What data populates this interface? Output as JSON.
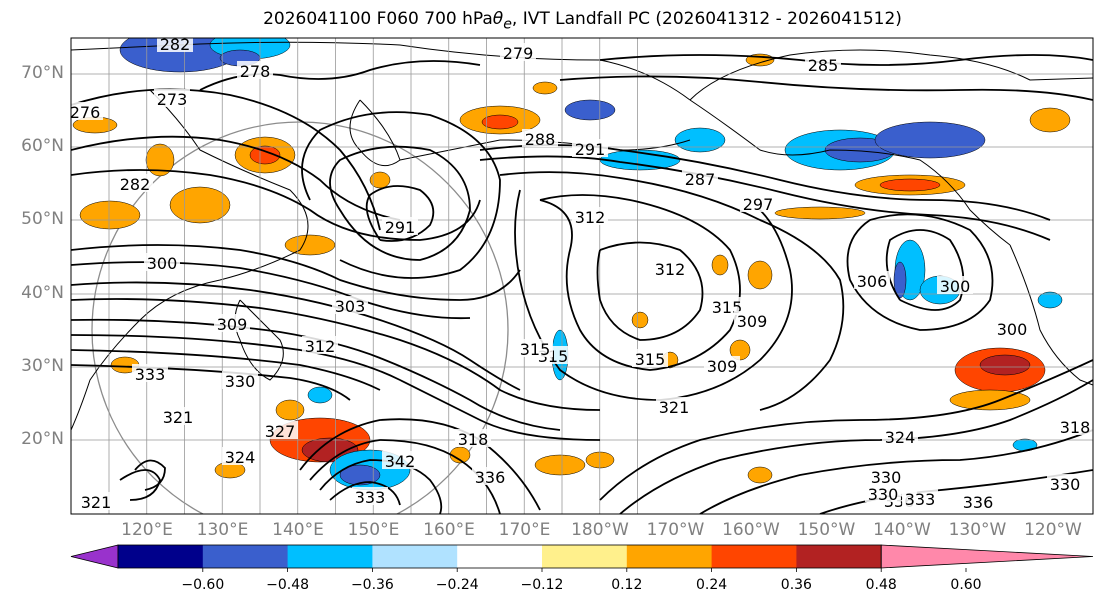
{
  "title": {
    "prefix": "2026041100 F060 700 hPa ",
    "theta": "θ",
    "theta_sub": "e",
    "suffix": ", IVT Landfall PC (2026041312 - 2026041512)"
  },
  "map": {
    "lat_labels": [
      "70°N",
      "60°N",
      "50°N",
      "40°N",
      "30°N",
      "20°N"
    ],
    "lon_labels": [
      "120°E",
      "130°E",
      "140°E",
      "150°E",
      "160°E",
      "170°E",
      "180°W",
      "170°W",
      "160°W",
      "150°W",
      "140°W",
      "130°W",
      "120°W"
    ],
    "contour_labels": [
      "279",
      "278",
      "273",
      "276",
      "285",
      "282",
      "288",
      "291",
      "297",
      "291",
      "287",
      "300",
      "303",
      "312",
      "312",
      "315",
      "309",
      "306",
      "300",
      "300",
      "309",
      "312",
      "315",
      "315",
      "309",
      "321",
      "321",
      "333",
      "330",
      "321",
      "324",
      "327",
      "318",
      "342",
      "336",
      "333",
      "330",
      "330",
      "336",
      "333",
      "336",
      "330",
      "324",
      "318",
      "315",
      "282"
    ],
    "contour_levels_K": [
      273,
      276,
      279,
      282,
      285,
      288,
      291,
      294,
      297,
      300,
      303,
      306,
      309,
      312,
      315,
      318,
      321,
      324,
      327,
      330,
      333,
      336,
      339,
      342
    ]
  },
  "colorbar": {
    "tick_labels": [
      "−0.60",
      "−0.48",
      "−0.36",
      "−0.24",
      "−0.12",
      "0.12",
      "0.24",
      "0.36",
      "0.48",
      "0.60"
    ],
    "colors": [
      "#9932cc",
      "#00008b",
      "#3a5fcd",
      "#00bfff",
      "#b0e2ff",
      "#ffffff",
      "#fff08c",
      "#ffa500",
      "#ff4500",
      "#b22222",
      "#ff88aa"
    ]
  },
  "fill_colors": {
    "neg_light": "#00bfff",
    "neg_mid": "#3a5fcd",
    "pos_light": "#fff08c",
    "pos_mid": "#ffa500",
    "pos_strong": "#ff4500",
    "pos_deep": "#b22222"
  }
}
